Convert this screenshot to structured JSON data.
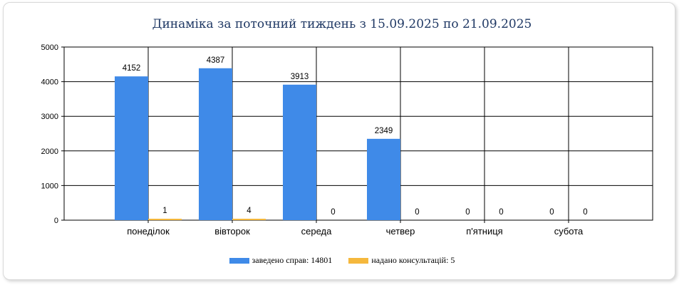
{
  "chart_data": {
    "type": "bar",
    "title": "Динаміка за поточний тиждень з 15.09.2025 по 21.09.2025",
    "categories": [
      "понеділок",
      "вівторок",
      "середа",
      "четвер",
      "п'ятниця",
      "субота"
    ],
    "series": [
      {
        "name": "заведено справ: 14801",
        "values": [
          4152,
          4387,
          3913,
          2349,
          0,
          0
        ],
        "color": "#3f8ae8"
      },
      {
        "name": "надано консультацій: 5",
        "values": [
          1,
          4,
          0,
          0,
          0,
          0
        ],
        "color": "#f5b83d"
      }
    ],
    "ylim": [
      0,
      5000
    ],
    "yticks": [
      0,
      1000,
      2000,
      3000,
      4000,
      5000
    ],
    "grid": true,
    "legend_position": "bottom"
  }
}
